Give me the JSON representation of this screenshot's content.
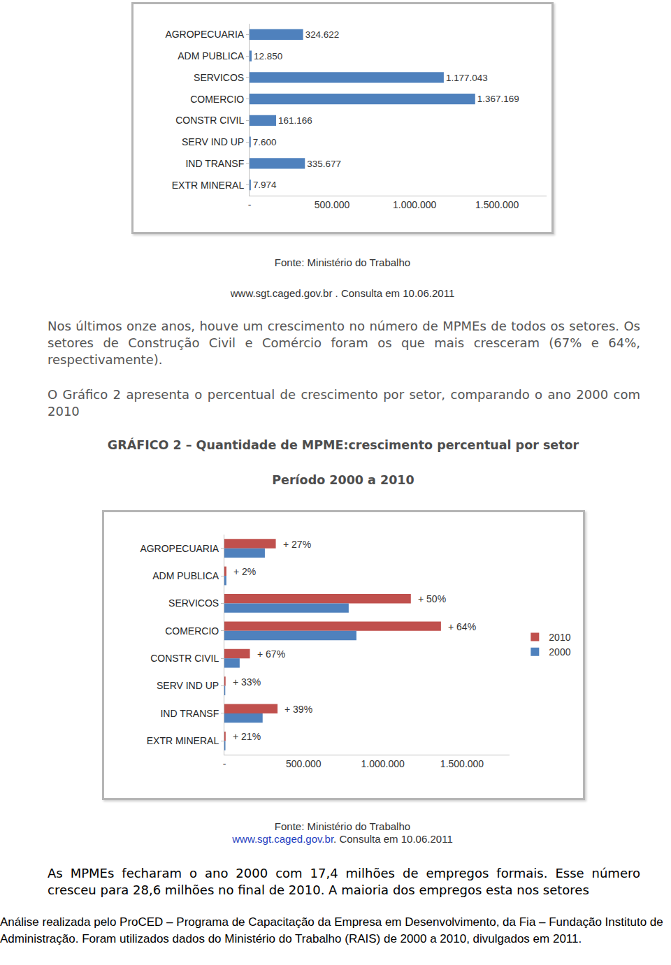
{
  "page": {
    "source_1": [
      "Fonte: Ministério do Trabalho",
      "www.sgt.caged.gov.br . Consulta em 10.06.2011"
    ],
    "paragraph_1": "Nos últimos onze anos, houve um crescimento no número de MPMEs de todos os setores. Os setores de Construção Civil e Comércio foram os que mais cresceram (67% e 64%, respectivamente).",
    "paragraph_2": "O Gráfico 2 apresenta o percentual de crescimento por setor, comparando o ano 2000 com 2010",
    "chart_2_heading": [
      "GRÁFICO 2 – Quantidade de MPME:crescimento percentual por setor",
      "Período 2000 a 2010"
    ],
    "source_2": {
      "text": "Fonte: Ministério do Trabalho",
      "link": "www.sgt.caged.gov.br",
      "after_link": ". Consulta em 10.06.2011"
    },
    "paragraph_3": "As MPMEs fecharam o ano 2000 com 17,4 milhões de empregos formais. Esse número cresceu para 28,6 milhões no final de 2010. A maioria dos empregos esta nos setores",
    "footer": "Análise realizada pelo ProCED – Programa de Capacitação da Empresa em Desenvolvimento, da Fia – Fundação Instituto de Administração. Foram utilizados dados do Ministério do Trabalho (RAIS) de 2000 a 2010, divulgados em 2011."
  },
  "chart_data": [
    {
      "type": "bar",
      "orientation": "horizontal",
      "categories": [
        "AGROPECUARIA",
        "ADM PUBLICA",
        "SERVICOS",
        "COMERCIO",
        "CONSTR CIVIL",
        "SERV IND UP",
        "IND TRANSF",
        "EXTR MINERAL"
      ],
      "values": [
        324622,
        12850,
        1177043,
        1367169,
        161166,
        7600,
        335677,
        7974
      ],
      "value_labels": [
        "324.622",
        "12.850",
        "1.177.043",
        "1.367.169",
        "161.166",
        "7.600",
        "335.677",
        "7.974"
      ],
      "data_labels": true,
      "color": "#4f81bd",
      "xlim": [
        0,
        1800000
      ],
      "xticks": [
        {
          "value": 0,
          "label": "-"
        },
        {
          "value": 500000,
          "label": "500.000"
        },
        {
          "value": 1000000,
          "label": "1.000.000"
        },
        {
          "value": 1500000,
          "label": "1.500.000"
        }
      ],
      "grid": false
    },
    {
      "type": "bar",
      "orientation": "horizontal",
      "categories": [
        "AGROPECUARIA",
        "ADM PUBLICA",
        "SERVICOS",
        "COMERCIO",
        "CONSTR CIVIL",
        "SERV IND UP",
        "IND TRANSF",
        "EXTR MINERAL"
      ],
      "series": [
        {
          "name": "2010",
          "color": "#c0504d",
          "values": [
            324622,
            12850,
            1177043,
            1367169,
            161166,
            7600,
            335677,
            7974
          ]
        },
        {
          "name": "2000",
          "color": "#4f81bd",
          "values": [
            255600,
            12600,
            784700,
            833600,
            96500,
            5700,
            241500,
            6600
          ]
        }
      ],
      "annotations": [
        {
          "category": "AGROPECUARIA",
          "text": "+ 27%"
        },
        {
          "category": "ADM PUBLICA",
          "text": "+ 2%"
        },
        {
          "category": "SERVICOS",
          "text": "+ 50%"
        },
        {
          "category": "COMERCIO",
          "text": "+ 64%"
        },
        {
          "category": "CONSTR CIVIL",
          "text": "+ 67%"
        },
        {
          "category": "SERV IND UP",
          "text": "+ 33%"
        },
        {
          "category": "IND TRANSF",
          "text": "+ 39%"
        },
        {
          "category": "EXTR MINERAL",
          "text": "+ 21%"
        }
      ],
      "legend": "right",
      "xlim": [
        0,
        1800000
      ],
      "xticks": [
        {
          "value": 0,
          "label": "-"
        },
        {
          "value": 500000,
          "label": "500.000"
        },
        {
          "value": 1000000,
          "label": "1.000.000"
        },
        {
          "value": 1500000,
          "label": "1.500.000"
        }
      ],
      "grid": false
    }
  ]
}
